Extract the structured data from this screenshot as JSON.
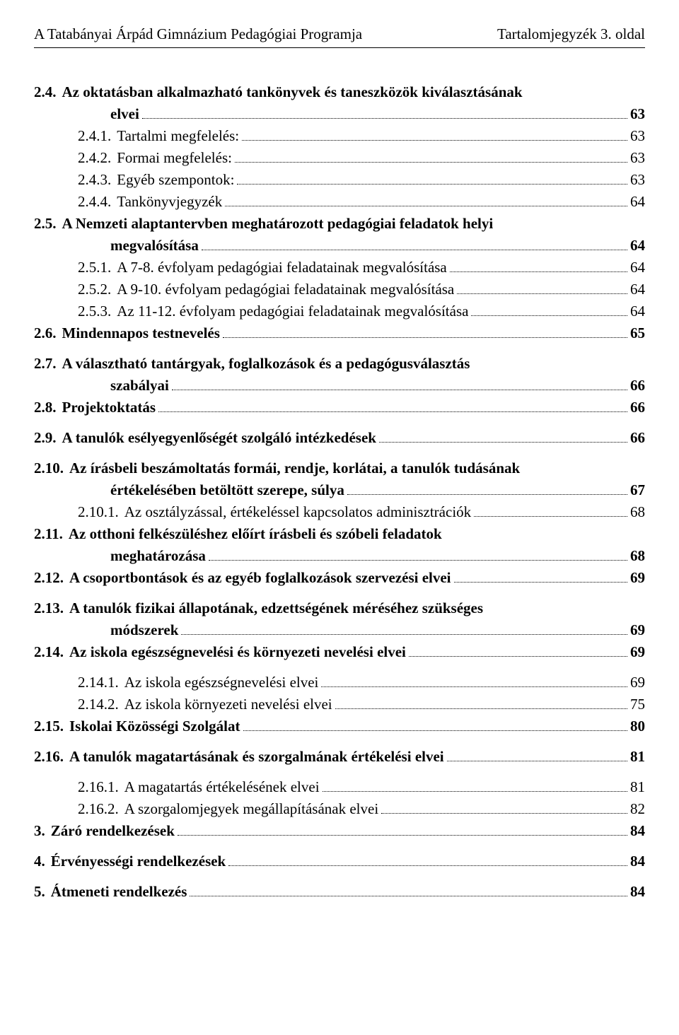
{
  "header": {
    "left": "A Tatabányai Árpád Gimnázium Pedagógiai Programja",
    "right": "Tartalomjegyzék 3. oldal"
  },
  "font": {
    "family": "Times New Roman",
    "body_size_pt": 16,
    "header_size_pt": 16,
    "text_color": "#000000",
    "background_color": "#ffffff",
    "leader_color": "#000000"
  },
  "toc": [
    {
      "num": "2.4.",
      "title": "Az oktatásban alkalmazható tankönyvek és taneszközök kiválasztásának",
      "cont": "elvei",
      "page": "63",
      "bold": true,
      "level": 0,
      "gap_after": false
    },
    {
      "num": "2.4.1.",
      "title": "Tartalmi megfelelés:",
      "page": "63",
      "bold": false,
      "level": 1,
      "gap_after": false
    },
    {
      "num": "2.4.2.",
      "title": "Formai megfelelés:",
      "page": "63",
      "bold": false,
      "level": 1,
      "gap_after": false
    },
    {
      "num": "2.4.3.",
      "title": "Egyéb szempontok:",
      "page": "63",
      "bold": false,
      "level": 1,
      "gap_after": false
    },
    {
      "num": "2.4.4.",
      "title": "Tankönyvjegyzék",
      "page": "64",
      "bold": false,
      "level": 1,
      "gap_after": false
    },
    {
      "num": "2.5.",
      "title": "A Nemzeti alaptantervben meghatározott pedagógiai feladatok helyi",
      "cont": "megvalósítása",
      "page": "64",
      "bold": true,
      "level": 0,
      "gap_after": false
    },
    {
      "num": "2.5.1.",
      "title": "A 7-8. évfolyam pedagógiai feladatainak megvalósítása",
      "page": "64",
      "bold": false,
      "level": 1,
      "gap_after": false
    },
    {
      "num": "2.5.2.",
      "title": "A 9-10. évfolyam pedagógiai feladatainak megvalósítása",
      "page": "64",
      "bold": false,
      "level": 1,
      "gap_after": false
    },
    {
      "num": "2.5.3.",
      "title": "Az 11-12. évfolyam pedagógiai feladatainak megvalósítása",
      "page": "64",
      "bold": false,
      "level": 1,
      "gap_after": false
    },
    {
      "num": "2.6.",
      "title": "Mindennapos testnevelés",
      "page": "65",
      "bold": true,
      "level": 0,
      "gap_after": true
    },
    {
      "num": "2.7.",
      "title": "A választható tantárgyak, foglalkozások és a pedagógusválasztás",
      "cont": "szabályai",
      "page": "66",
      "bold": true,
      "level": 0,
      "gap_after": false
    },
    {
      "num": "2.8.",
      "title": "Projektoktatás",
      "page": "66",
      "bold": true,
      "level": 0,
      "gap_after": true
    },
    {
      "num": "2.9.",
      "title": "A tanulók esélyegyenlőségét szolgáló intézkedések",
      "page": "66",
      "bold": true,
      "level": 0,
      "gap_after": true
    },
    {
      "num": "2.10.",
      "title": "Az írásbeli beszámoltatás formái, rendje, korlátai, a tanulók tudásának",
      "cont": "értékelésében betöltött szerepe, súlya",
      "page": "67",
      "bold": true,
      "level": 0,
      "gap_after": false
    },
    {
      "num": "2.10.1.",
      "title": "Az osztályzással, értékeléssel kapcsolatos adminisztrációk",
      "page": "68",
      "bold": false,
      "level": 1,
      "gap_after": false
    },
    {
      "num": "2.11.",
      "title": "Az otthoni felkészüléshez előírt írásbeli és szóbeli feladatok",
      "cont": "meghatározása",
      "page": "68",
      "bold": true,
      "level": 0,
      "gap_after": false
    },
    {
      "num": "2.12.",
      "title": "A csoportbontások és az egyéb foglalkozások szervezési elvei",
      "page": "69",
      "bold": true,
      "level": 0,
      "gap_after": true
    },
    {
      "num": "2.13.",
      "title": "A tanulók fizikai állapotának, edzettségének méréséhez szükséges",
      "cont": "módszerek",
      "page": "69",
      "bold": true,
      "level": 0,
      "gap_after": false
    },
    {
      "num": "2.14.",
      "title": "Az iskola egészségnevelési és környezeti nevelési elvei",
      "page": "69",
      "bold": true,
      "level": 0,
      "gap_after": true
    },
    {
      "num": "2.14.1.",
      "title": "Az iskola egészségnevelési elvei",
      "page": "69",
      "bold": false,
      "level": 1,
      "gap_after": false
    },
    {
      "num": "2.14.2.",
      "title": "Az iskola környezeti nevelési elvei",
      "page": "75",
      "bold": false,
      "level": 1,
      "gap_after": false
    },
    {
      "num": "2.15.",
      "title": "Iskolai Közösségi Szolgálat",
      "page": "80",
      "bold": true,
      "level": 0,
      "gap_after": true
    },
    {
      "num": "2.16.",
      "title": "A tanulók magatartásának és szorgalmának értékelési elvei",
      "page": "81",
      "bold": true,
      "level": 0,
      "gap_after": true
    },
    {
      "num": "2.16.1.",
      "title": "A magatartás értékelésének elvei",
      "page": "81",
      "bold": false,
      "level": 1,
      "gap_after": false
    },
    {
      "num": "2.16.2.",
      "title": "A szorgalomjegyek megállapításának elvei",
      "page": "82",
      "bold": false,
      "level": 1,
      "gap_after": false
    },
    {
      "num": "3.",
      "title": "Záró rendelkezések",
      "page": "84",
      "bold": true,
      "level": 0,
      "gap_after": true
    },
    {
      "num": "4.",
      "title": "Érvényességi rendelkezések",
      "page": "84",
      "bold": true,
      "level": 0,
      "gap_after": true
    },
    {
      "num": "5.",
      "title": "Átmeneti rendelkezés",
      "page": "84",
      "bold": true,
      "level": 0,
      "gap_after": false
    }
  ]
}
